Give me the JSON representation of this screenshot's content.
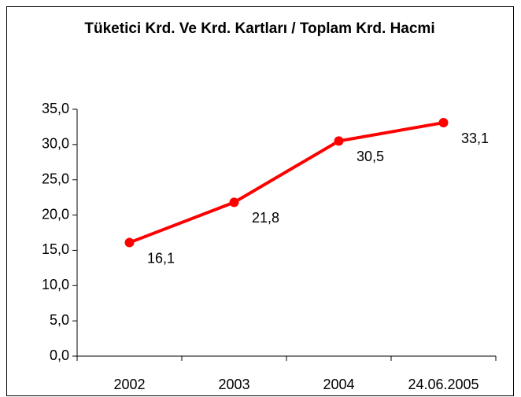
{
  "chart_data": {
    "type": "line",
    "title": "Tüketici Krd. Ve Krd. Kartları / Toplam Krd. Hacmi",
    "categories": [
      "2002",
      "2003",
      "2004",
      "24.06.2005"
    ],
    "series": [
      {
        "name": "Tüketici Krd. Ve Krd. Kartları / Toplam Krd. Hacmi",
        "color": "#ff0000",
        "values": [
          16.1,
          21.8,
          30.5,
          33.1
        ],
        "value_labels": [
          "16,1",
          "21,8",
          "30,5",
          "33,1"
        ]
      }
    ],
    "ylim": [
      0,
      35
    ],
    "yticks": [
      {
        "value": 0,
        "label": "0,0"
      },
      {
        "value": 5,
        "label": "5,0"
      },
      {
        "value": 10,
        "label": "10,0"
      },
      {
        "value": 15,
        "label": "15,0"
      },
      {
        "value": 20,
        "label": "20,0"
      },
      {
        "value": 25,
        "label": "25,0"
      },
      {
        "value": 30,
        "label": "30,0"
      },
      {
        "value": 35,
        "label": "35,0"
      }
    ]
  }
}
